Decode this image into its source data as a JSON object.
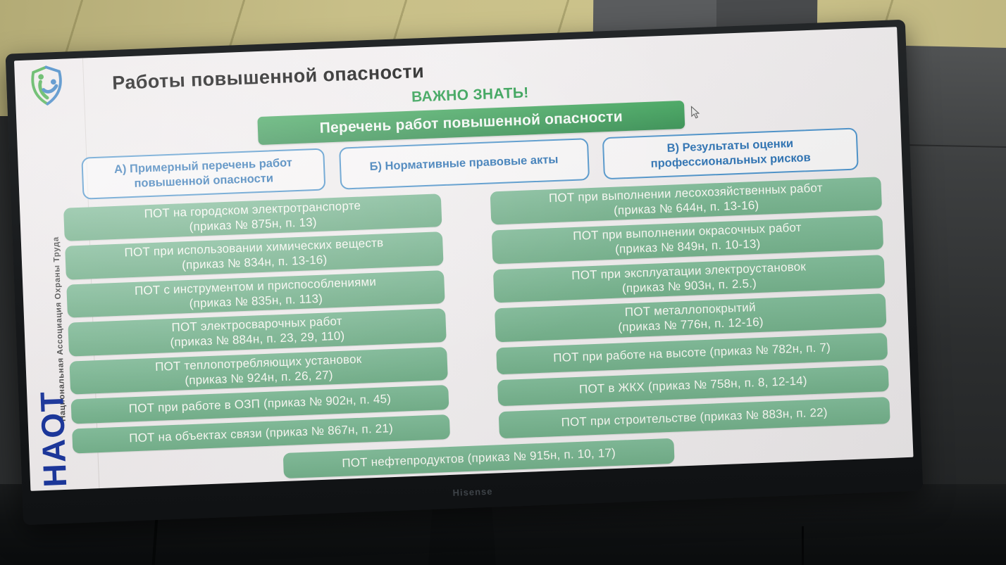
{
  "tv": {
    "brand": "Hisense"
  },
  "slide": {
    "sidebar": {
      "org_name_vertical": "Национальная Ассоциация Охраны Труда",
      "org_abbr": "НАОТ"
    },
    "title": "Работы повышенной опасности",
    "important_note": "ВАЖНО ЗНАТЬ!",
    "header_banner": "Перечень работ повышенной опасности",
    "tabs": [
      {
        "id": "A",
        "lines": [
          "А) Примерный перечень работ",
          "повышенной опасности"
        ]
      },
      {
        "id": "Б",
        "lines": [
          "Б) Нормативные правовые акты"
        ]
      },
      {
        "id": "В",
        "lines": [
          "В) Результаты оценки",
          "профессиональных рисков"
        ]
      }
    ],
    "left_column": [
      {
        "lines": [
          "ПОТ на городском электротранспорте",
          "(приказ № 875н, п. 13)"
        ]
      },
      {
        "lines": [
          "ПОТ при использовании химических веществ",
          "(приказ № 834н, п. 13-16)"
        ]
      },
      {
        "lines": [
          "ПОТ с инструментом и приспособлениями",
          "(приказ № 835н, п. 113)"
        ]
      },
      {
        "lines": [
          "ПОТ электросварочных работ",
          "(приказ № 884н, п. 23, 29, 110)"
        ]
      },
      {
        "lines": [
          "ПОТ теплопотребляющих установок",
          "(приказ № 924н, п. 26, 27)"
        ]
      },
      {
        "lines": [
          "ПОТ при работе в ОЗП (приказ № 902н, п. 45)"
        ]
      },
      {
        "lines": [
          "ПОТ на объектах связи (приказ № 867н, п. 21)"
        ]
      }
    ],
    "right_column": [
      {
        "lines": [
          "ПОТ при выполнении лесохозяйственных работ",
          "(приказ № 644н, п. 13-16)"
        ]
      },
      {
        "lines": [
          "ПОТ при выполнении окрасочных работ",
          "(приказ № 849н, п. 10-13)"
        ]
      },
      {
        "lines": [
          "ПОТ при эксплуатации электроустановок",
          "(приказ № 903н, п. 2.5.)"
        ]
      },
      {
        "lines": [
          "ПОТ металлопокрытий",
          "(приказ № 776н, п. 12-16)"
        ]
      },
      {
        "lines": [
          "ПОТ при работе на высоте (приказ № 782н, п. 7)"
        ]
      },
      {
        "lines": [
          "ПОТ в ЖКХ (приказ № 758н, п. 8, 12-14)"
        ]
      },
      {
        "lines": [
          "ПОТ при строительстве (приказ № 883н, п. 22)"
        ]
      }
    ],
    "bottom_item": {
      "lines": [
        "ПОТ нефтепродуктов (приказ № 915н, п. 10, 17)"
      ]
    },
    "colors": {
      "banner_green": "#3f9e58",
      "item_green": "#7ab48e",
      "important_green": "#2a9d4d",
      "tab_blue_border": "#4d94cc",
      "tab_blue_text": "#2e74b5",
      "org_abbr_blue": "#17339b"
    }
  }
}
